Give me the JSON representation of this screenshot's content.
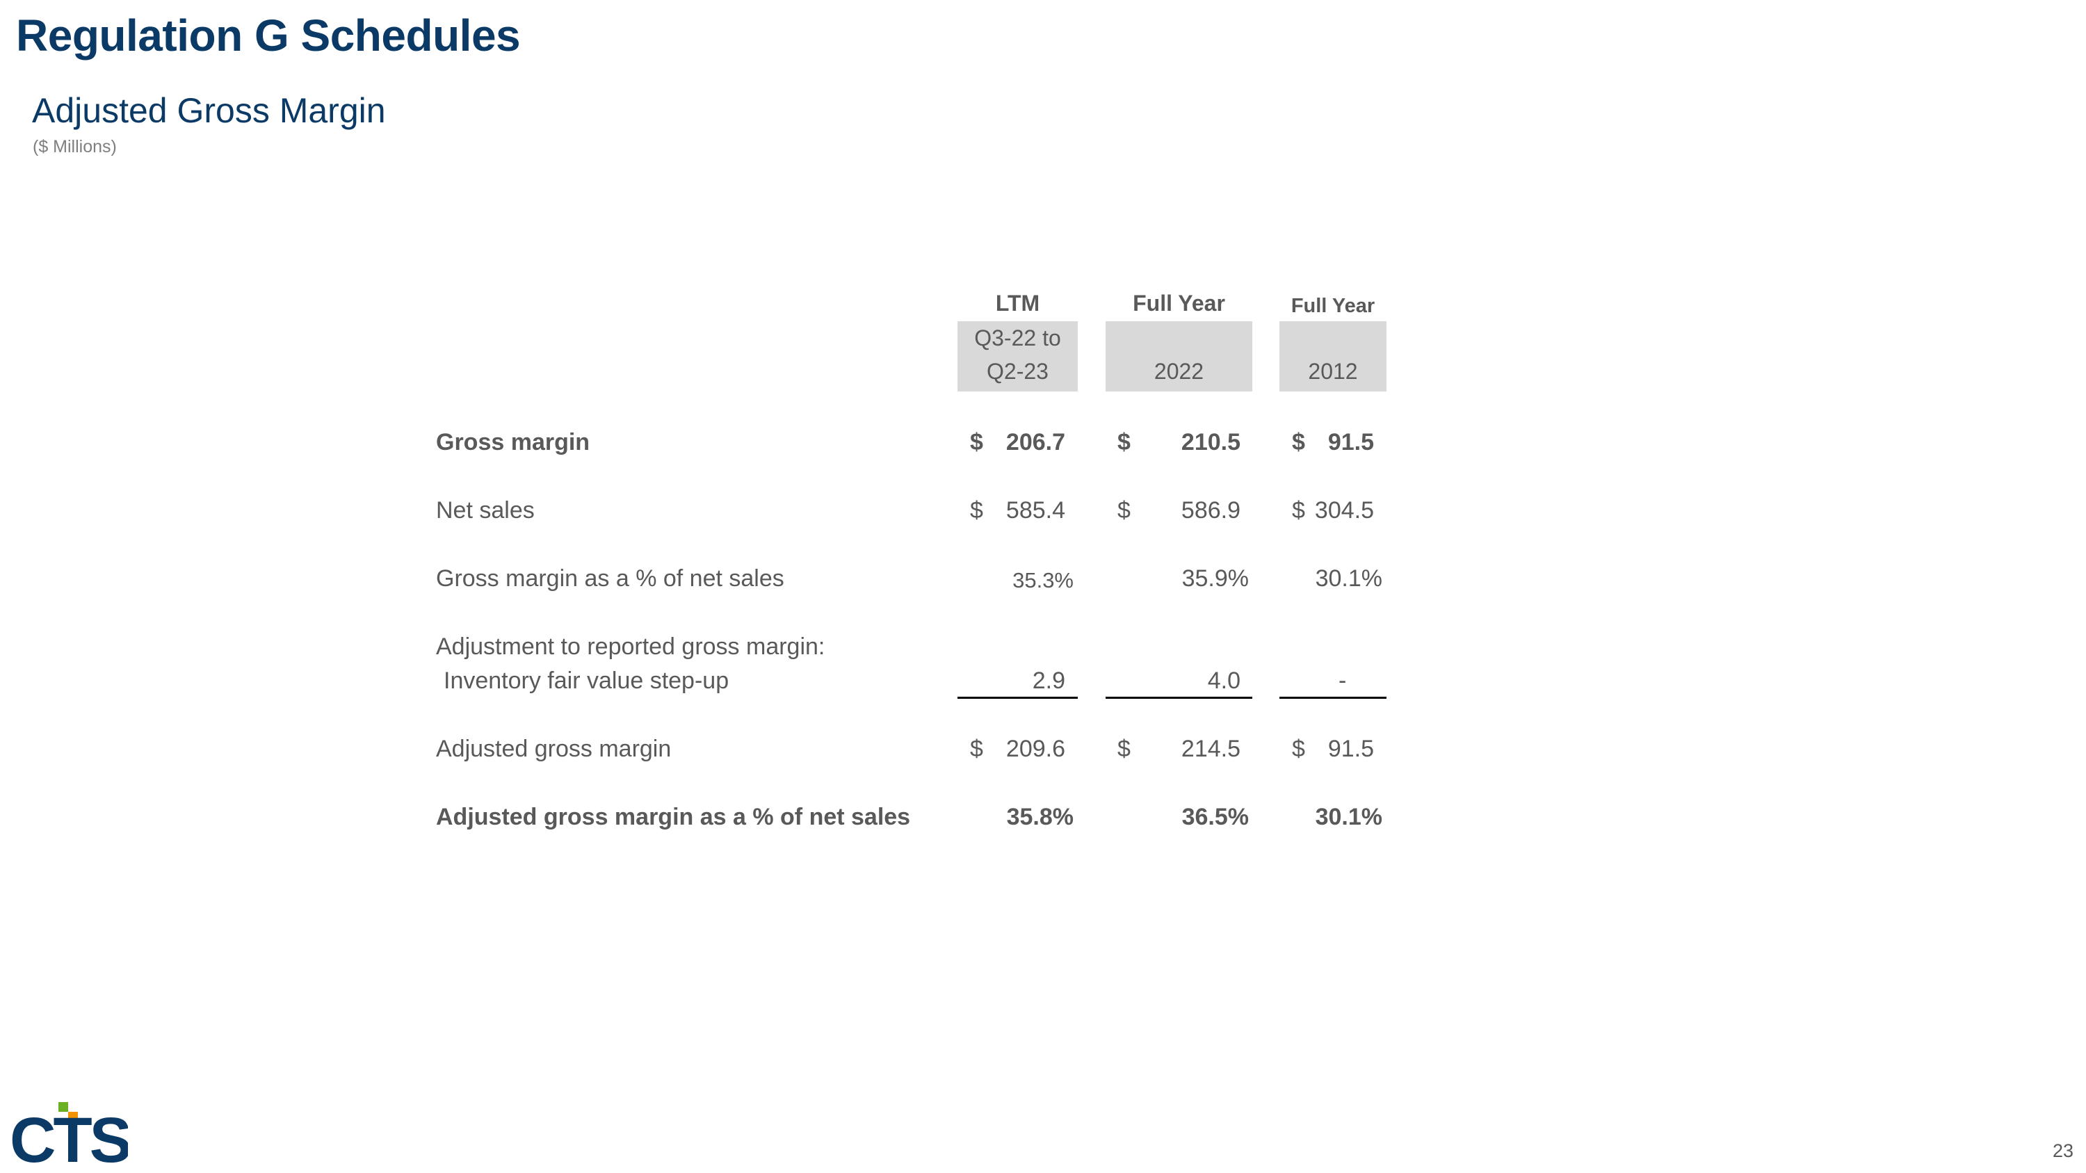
{
  "header": {
    "title": "Regulation G Schedules",
    "section_title": "Adjusted Gross Margin",
    "units": "($ Millions)"
  },
  "columns": [
    {
      "top": "LTM",
      "line1": "Q3-22 to",
      "line2": "Q2-23"
    },
    {
      "top": "Full Year",
      "line1": "",
      "line2": "2022"
    },
    {
      "top": "Full Year",
      "line1": "",
      "line2": "2012"
    }
  ],
  "rows": {
    "gross_margin": {
      "label": "Gross margin",
      "values": [
        "206.7",
        "210.5",
        "91.5"
      ],
      "currency": "$"
    },
    "net_sales": {
      "label": "Net sales",
      "values": [
        "585.4",
        "586.9",
        "304.5"
      ],
      "currency": "$"
    },
    "gm_pct": {
      "label": "Gross margin as a % of net sales",
      "values": [
        "35.3%",
        "35.9%",
        "30.1%"
      ]
    },
    "adjustment_heading": {
      "label": "Adjustment to reported gross margin:"
    },
    "inventory": {
      "label": "Inventory fair value step-up",
      "values": [
        "2.9",
        "4.0",
        "-"
      ]
    },
    "adjusted_gm": {
      "label": "Adjusted gross margin",
      "values": [
        "209.6",
        "214.5",
        "91.5"
      ],
      "currency": "$"
    },
    "adjusted_gm_pct": {
      "label": "Adjusted gross margin as a % of net sales",
      "values": [
        "35.8%",
        "36.5%",
        "30.1%"
      ]
    }
  },
  "footer": {
    "logo_text": "CTS",
    "page_number": "23"
  },
  "colors": {
    "title": "#0b3a66",
    "text": "#595959",
    "header_fill": "#d9d9d9",
    "logo_blue": "#0b3a66",
    "logo_green": "#6ab023",
    "logo_orange": "#f39200"
  }
}
